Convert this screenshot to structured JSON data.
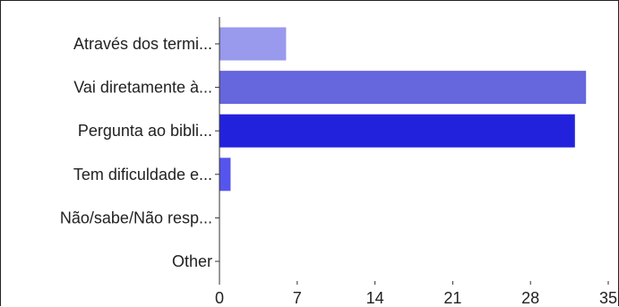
{
  "chart_data": {
    "type": "bar",
    "orientation": "horizontal",
    "categories": [
      "Através dos termi...",
      "Vai diretamente à...",
      "Pergunta ao bibli...",
      "Tem dificuldade e...",
      "Não/sabe/Não resp...",
      "Other"
    ],
    "values": [
      6,
      33,
      32,
      1,
      0,
      0
    ],
    "bar_colors": [
      "#9999ee",
      "#6666dd",
      "#2222dd",
      "#5555ee",
      "#4444dd",
      "#3333cc"
    ],
    "xlim": [
      0,
      35
    ],
    "xticks": [
      0,
      7,
      14,
      21,
      28,
      35
    ],
    "xtick_labels": [
      "0",
      "7",
      "14",
      "21",
      "28",
      "35"
    ],
    "grid": false,
    "legend": "none"
  }
}
